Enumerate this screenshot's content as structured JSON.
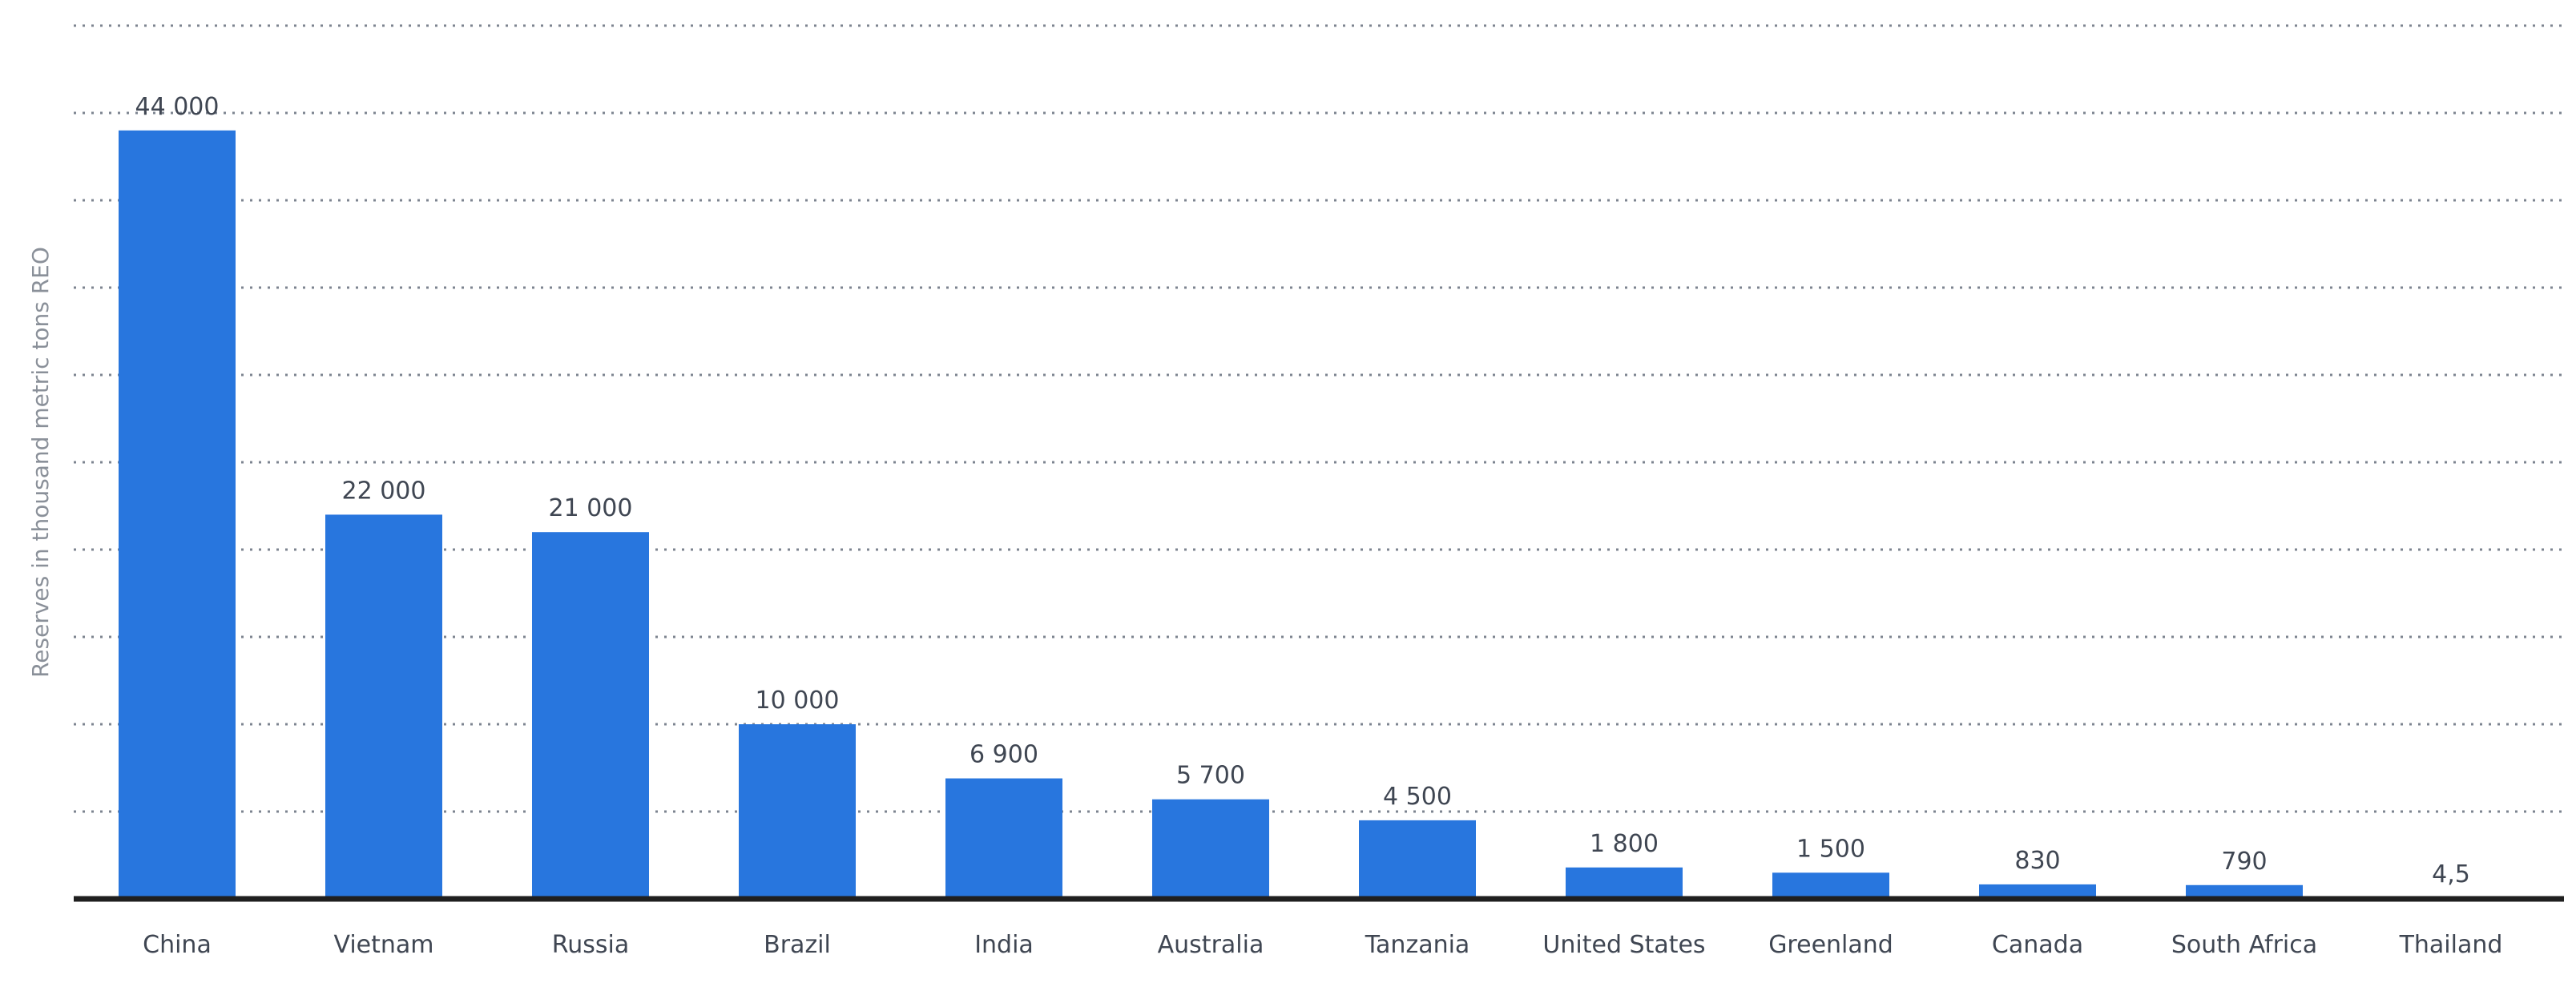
{
  "chart_data": {
    "type": "bar",
    "categories": [
      "China",
      "Vietnam",
      "Russia",
      "Brazil",
      "India",
      "Australia",
      "Tanzania",
      "United States",
      "Greenland",
      "Canada",
      "South Africa",
      "Thailand"
    ],
    "values": [
      44000,
      22000,
      21000,
      10000,
      6900,
      5700,
      4500,
      1800,
      1500,
      830,
      790,
      4.5
    ],
    "value_labels": [
      "44 000",
      "22 000",
      "21 000",
      "10 000",
      "6 900",
      "5 700",
      "4 500",
      "1 800",
      "1 500",
      "830",
      "790",
      "4,5"
    ],
    "ylabel": "Reserves in thousand metric tons REO",
    "ylim": [
      0,
      50000
    ],
    "grid": true,
    "bar_color": "#2876de"
  }
}
